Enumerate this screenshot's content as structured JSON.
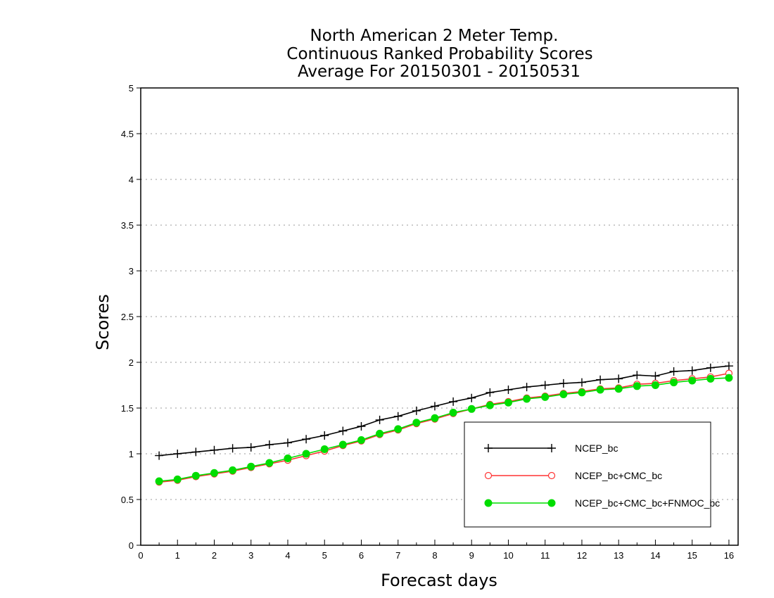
{
  "chart_data": {
    "type": "line",
    "title": [
      "North American 2 Meter Temp.",
      "Continuous Ranked Probability Scores",
      "Average For 20150301 - 20150531"
    ],
    "xlabel": "Forecast days",
    "ylabel": "Scores",
    "xlim": [
      0,
      16.25
    ],
    "ylim": [
      0,
      5
    ],
    "xticks": [
      "0",
      "1",
      "2",
      "3",
      "4",
      "5",
      "6",
      "7",
      "8",
      "9",
      "10",
      "11",
      "12",
      "13",
      "14",
      "15",
      "16"
    ],
    "yticks": [
      "0",
      "0.5",
      "1",
      "1.5",
      "2",
      "2.5",
      "3",
      "3.5",
      "4",
      "4.5",
      "5"
    ],
    "grid": "horizontal dotted",
    "legend_position": "lower-right",
    "x": [
      0.5,
      1,
      1.5,
      2,
      2.5,
      3,
      3.5,
      4,
      4.5,
      5,
      5.5,
      6,
      6.5,
      7,
      7.5,
      8,
      8.5,
      9,
      9.5,
      10,
      10.5,
      11,
      11.5,
      12,
      12.5,
      13,
      13.5,
      14,
      14.5,
      15,
      15.5,
      16
    ],
    "series": [
      {
        "name": "NCEP_bc",
        "color": "#000000",
        "marker": "plus",
        "values": [
          0.98,
          1.0,
          1.02,
          1.04,
          1.06,
          1.07,
          1.1,
          1.12,
          1.16,
          1.2,
          1.25,
          1.3,
          1.37,
          1.41,
          1.47,
          1.52,
          1.57,
          1.61,
          1.67,
          1.7,
          1.73,
          1.75,
          1.77,
          1.78,
          1.81,
          1.82,
          1.86,
          1.85,
          1.9,
          1.91,
          1.94,
          1.96
        ]
      },
      {
        "name": "NCEP_bc+CMC_bc",
        "color": "#ff3333",
        "marker": "open-circle",
        "values": [
          0.69,
          0.71,
          0.75,
          0.78,
          0.81,
          0.85,
          0.89,
          0.93,
          0.98,
          1.03,
          1.09,
          1.14,
          1.21,
          1.26,
          1.33,
          1.38,
          1.44,
          1.49,
          1.54,
          1.57,
          1.61,
          1.63,
          1.66,
          1.68,
          1.71,
          1.72,
          1.76,
          1.77,
          1.8,
          1.82,
          1.84,
          1.88
        ]
      },
      {
        "name": "NCEP_bc+CMC_bc+FNMOC_bc",
        "color": "#00dd00",
        "marker": "filled-circle",
        "values": [
          0.7,
          0.72,
          0.76,
          0.79,
          0.82,
          0.86,
          0.9,
          0.95,
          1.0,
          1.05,
          1.1,
          1.15,
          1.22,
          1.27,
          1.34,
          1.39,
          1.45,
          1.49,
          1.53,
          1.56,
          1.6,
          1.62,
          1.65,
          1.67,
          1.7,
          1.71,
          1.74,
          1.75,
          1.78,
          1.8,
          1.82,
          1.83
        ]
      }
    ]
  }
}
